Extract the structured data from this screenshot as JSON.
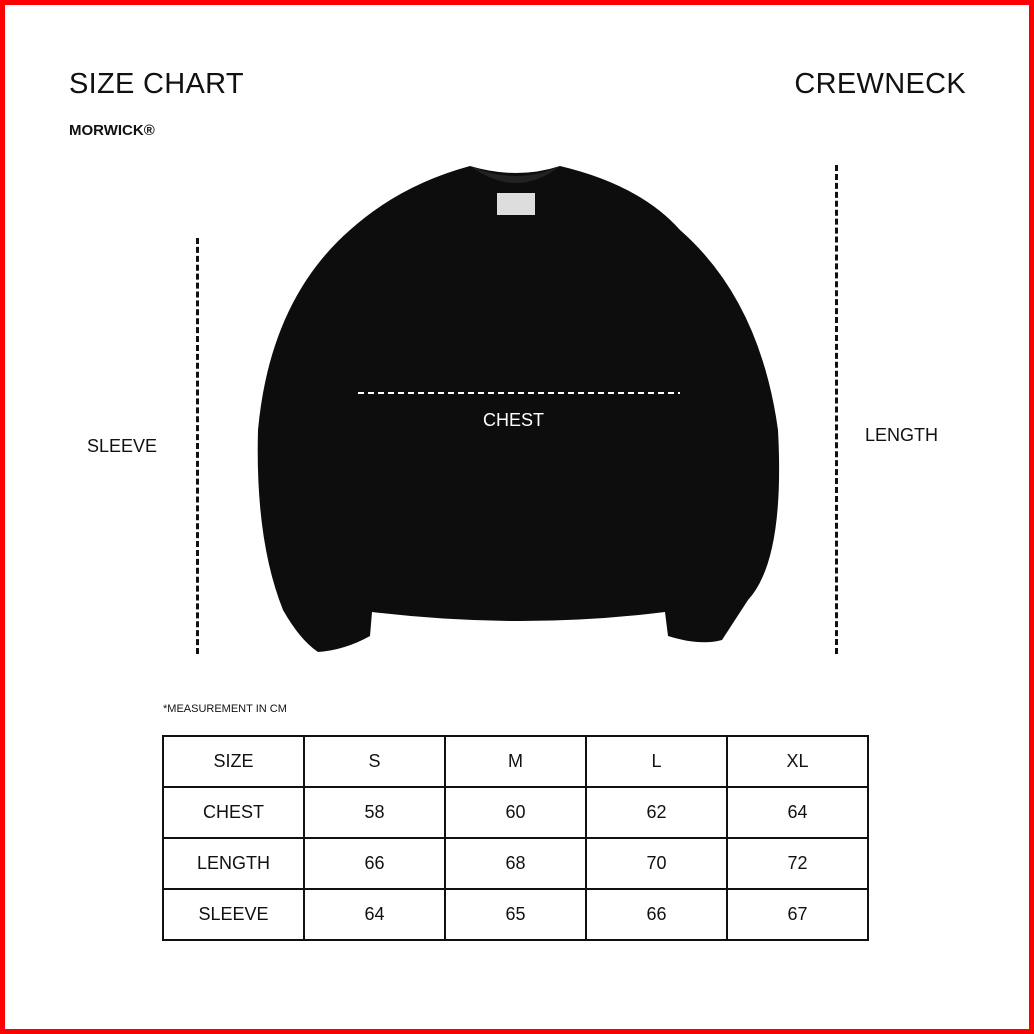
{
  "header": {
    "title": "SIZE CHART",
    "product": "CREWNECK",
    "brand": "MORWICK®"
  },
  "diagram": {
    "sleeve_label": "SLEEVE",
    "chest_label": "CHEST",
    "length_label": "LENGTH"
  },
  "note": "*MEASUREMENT IN CM",
  "table": {
    "headers": [
      "SIZE",
      "S",
      "M",
      "L",
      "XL"
    ],
    "rows": [
      [
        "CHEST",
        "58",
        "60",
        "62",
        "64"
      ],
      [
        "LENGTH",
        "66",
        "68",
        "70",
        "72"
      ],
      [
        "SLEEVE",
        "64",
        "65",
        "66",
        "67"
      ]
    ]
  },
  "colors": {
    "border": "#ff0000",
    "garment": "#0d0d0d"
  }
}
